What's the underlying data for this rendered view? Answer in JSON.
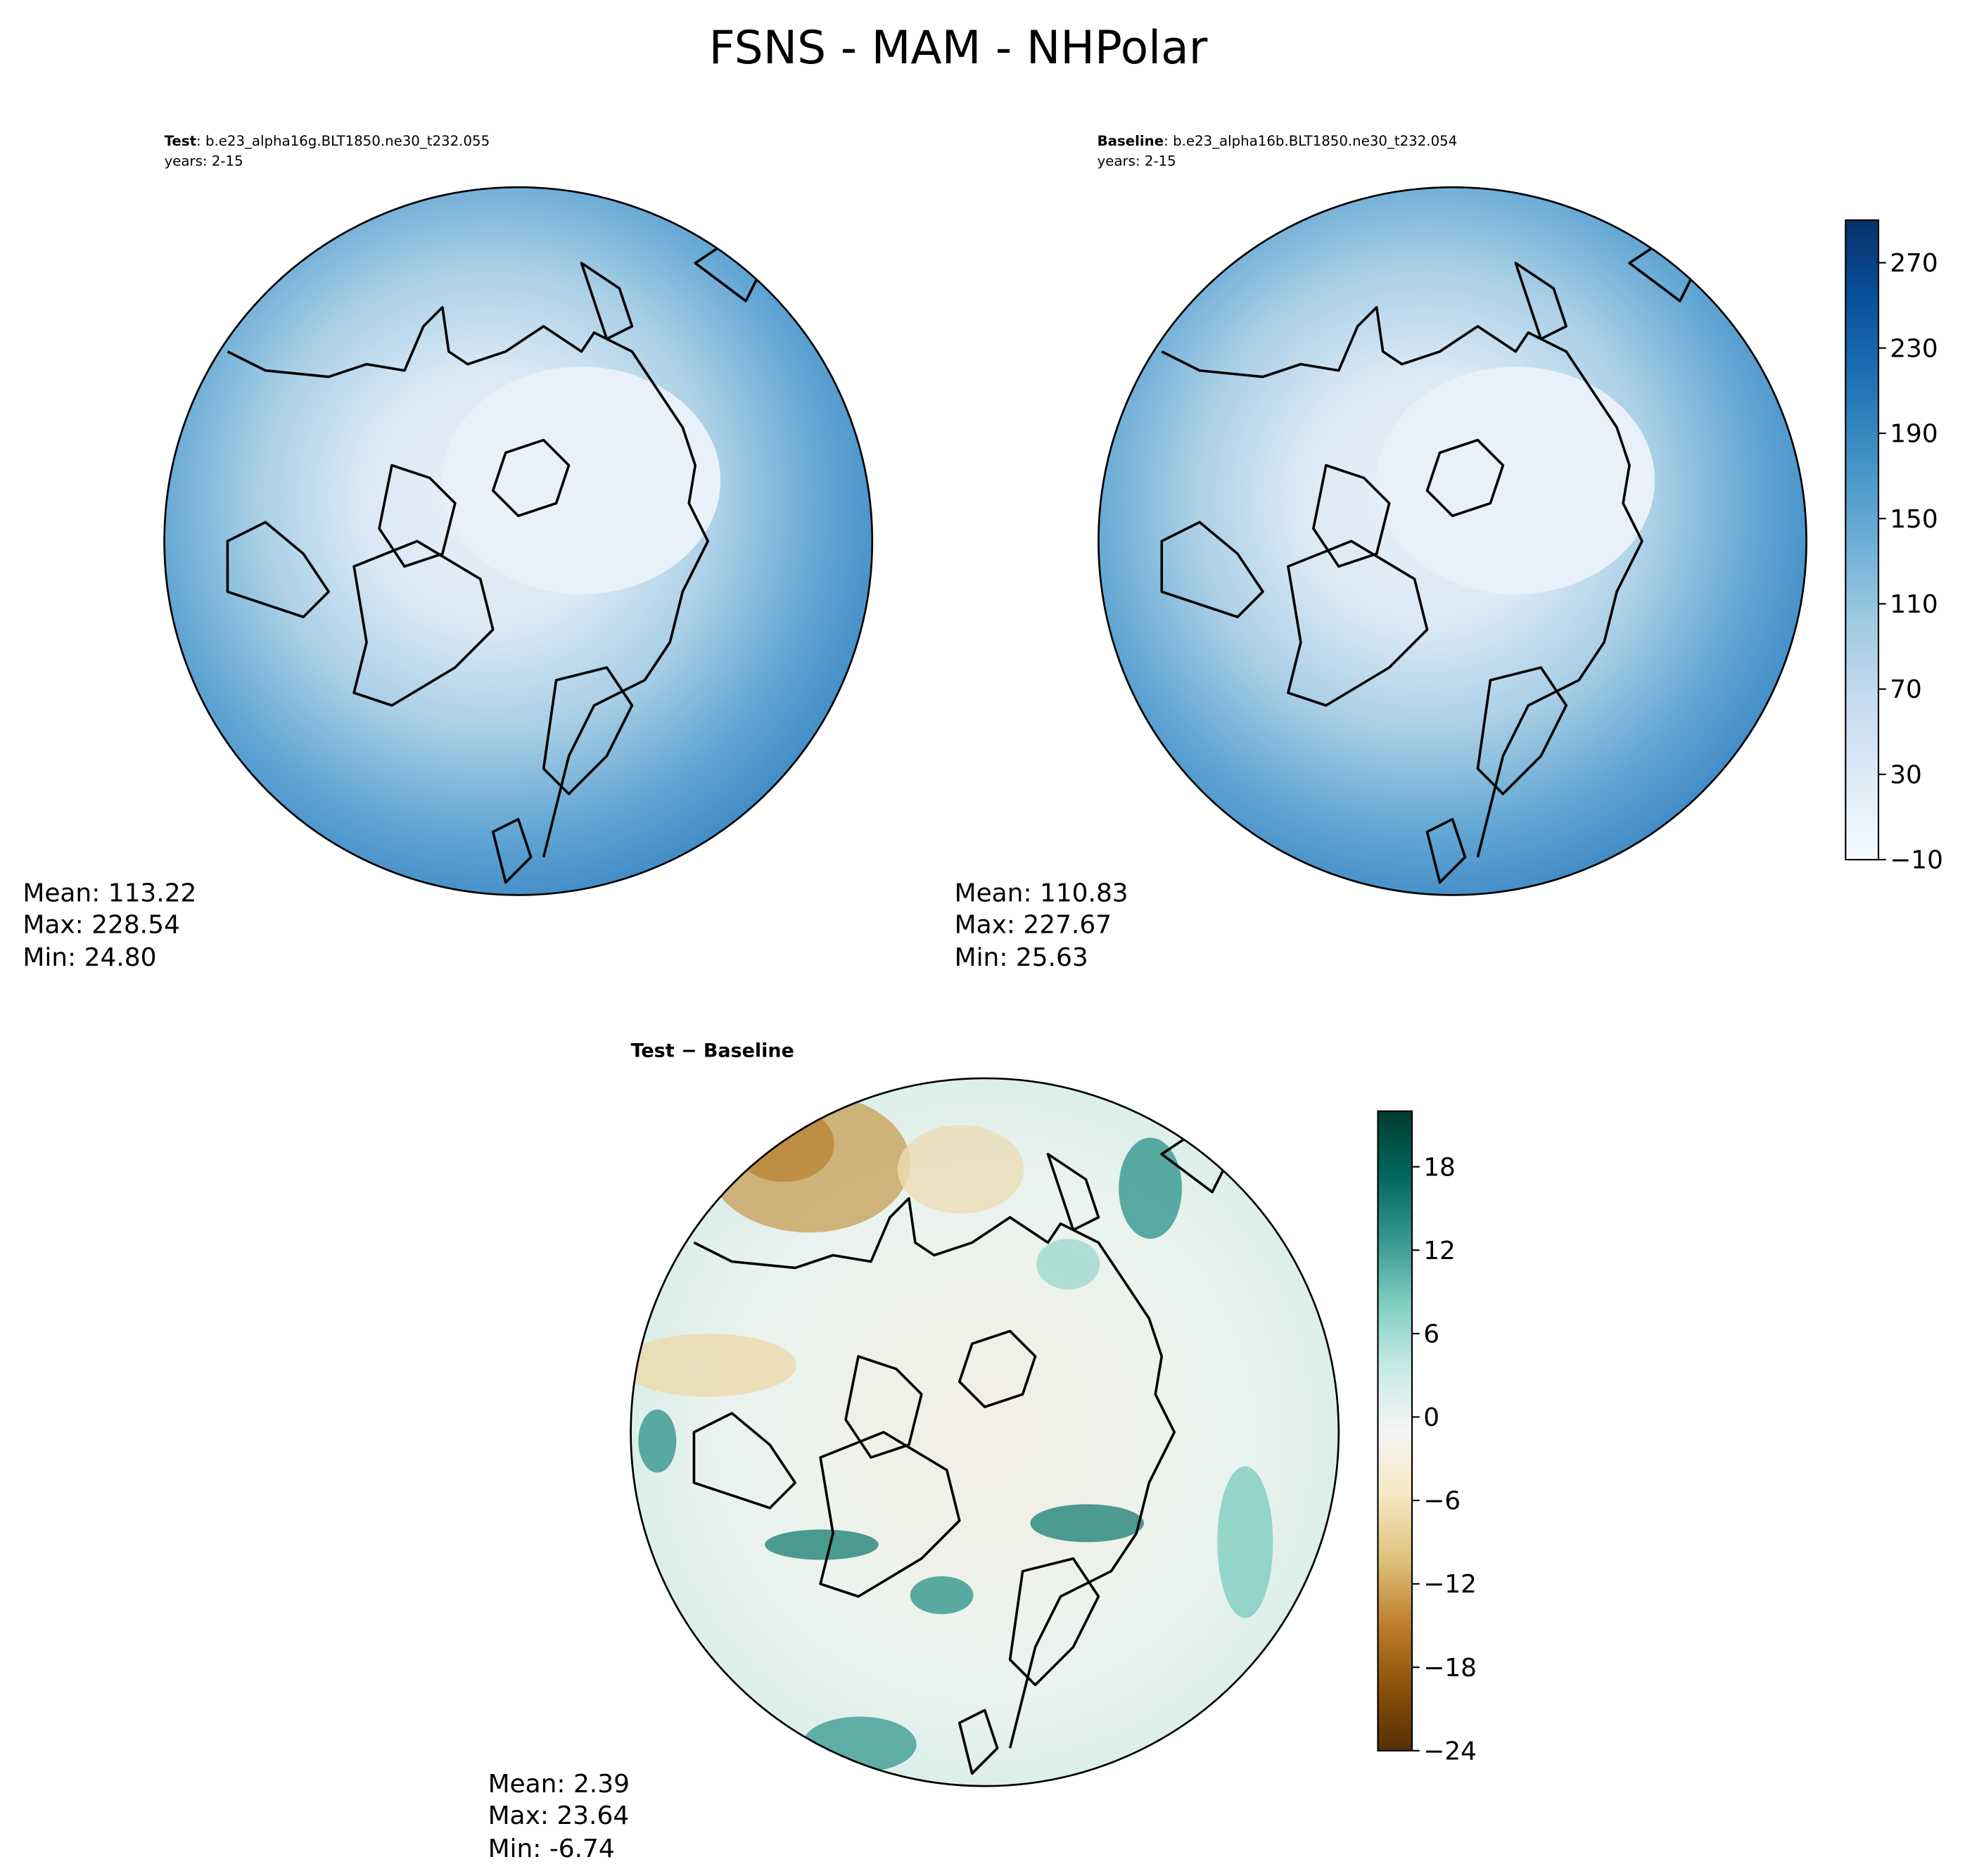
{
  "title": "FSNS - MAM - NHPolar",
  "panels": [
    {
      "label": "Test",
      "case": ": b.e23_alpha16g.BLT1850.ne30_t232.055",
      "years": "years: 2-15",
      "stats": [
        "Mean: 113.22",
        "Max: 228.54",
        "Min: 24.80"
      ]
    },
    {
      "label": "Baseline",
      "case": ": b.e23_alpha16b.BLT1850.ne30_t232.054",
      "years": "years: 2-15",
      "stats": [
        "Mean: 110.83",
        "Max: 227.67",
        "Min: 25.63"
      ]
    },
    {
      "label": "Test − Baseline",
      "stats": [
        "Mean:  2.39",
        "Max: 23.64",
        "Min: -6.74"
      ]
    }
  ],
  "colorbars": [
    {
      "clim": [
        -10,
        290
      ],
      "ticks": [
        {
          "value": -10,
          "label": "−10"
        },
        30,
        70,
        110,
        150,
        190,
        230,
        270
      ],
      "colors": [
        "#f7fbff",
        "#deebf7",
        "#c6dbef",
        "#9ecae1",
        "#6baed6",
        "#4292c6",
        "#2171b5",
        "#08519c",
        "#08306b"
      ]
    },
    {
      "clim": [
        -24,
        22
      ],
      "ticks": [
        {
          "value": -24,
          "label": "−24"
        },
        {
          "value": -18,
          "label": "−18"
        },
        {
          "value": -12,
          "label": "−12"
        },
        {
          "value": -6,
          "label": "−6"
        },
        0,
        6,
        12,
        18
      ],
      "colors": [
        "#543005",
        "#8c510a",
        "#bf812d",
        "#dfc27d",
        "#f6e8c3",
        "#f5f5f5",
        "#c7eae5",
        "#80cdc1",
        "#35978f",
        "#01665e",
        "#003c30"
      ]
    }
  ]
}
